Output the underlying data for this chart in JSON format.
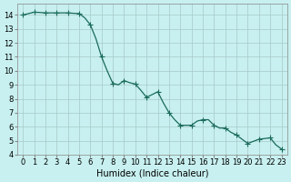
{
  "x": [
    0,
    0.5,
    1,
    1.5,
    2,
    2.5,
    3,
    3.5,
    4,
    4.5,
    5,
    5.5,
    6,
    6.5,
    7,
    7.5,
    8,
    8.5,
    9,
    9.5,
    10,
    10.5,
    11,
    11.5,
    12,
    12.5,
    13,
    13.5,
    14,
    14.5,
    15,
    15.5,
    16,
    16.5,
    17,
    17.5,
    18,
    18.5,
    19,
    19.5,
    20,
    20.5,
    21,
    21.5,
    22,
    22.5,
    23
  ],
  "y": [
    14.0,
    14.1,
    14.2,
    14.18,
    14.15,
    14.15,
    14.15,
    14.15,
    14.15,
    14.12,
    14.1,
    13.8,
    13.3,
    12.3,
    11.0,
    10.0,
    9.1,
    9.0,
    9.3,
    9.15,
    9.05,
    8.6,
    8.1,
    8.3,
    8.5,
    7.7,
    7.0,
    6.5,
    6.1,
    6.1,
    6.1,
    6.4,
    6.5,
    6.5,
    6.1,
    5.9,
    5.9,
    5.6,
    5.4,
    5.1,
    4.8,
    4.95,
    5.1,
    5.15,
    5.2,
    4.7,
    4.4
  ],
  "xlabel": "Humidex (Indice chaleur)",
  "xlim": [
    -0.5,
    23.5
  ],
  "ylim": [
    4,
    14.8
  ],
  "yticks": [
    4,
    5,
    6,
    7,
    8,
    9,
    10,
    11,
    12,
    13,
    14
  ],
  "xticks": [
    0,
    1,
    2,
    3,
    4,
    5,
    6,
    7,
    8,
    9,
    10,
    11,
    12,
    13,
    14,
    15,
    16,
    17,
    18,
    19,
    20,
    21,
    22,
    23
  ],
  "line_color": "#1a6b5a",
  "marker": "+",
  "marker_size": 4,
  "marker_every": 2,
  "bg_color": "#c8f0f0",
  "grid_color": "#a8c8c8",
  "tick_fontsize": 6,
  "xlabel_fontsize": 7
}
